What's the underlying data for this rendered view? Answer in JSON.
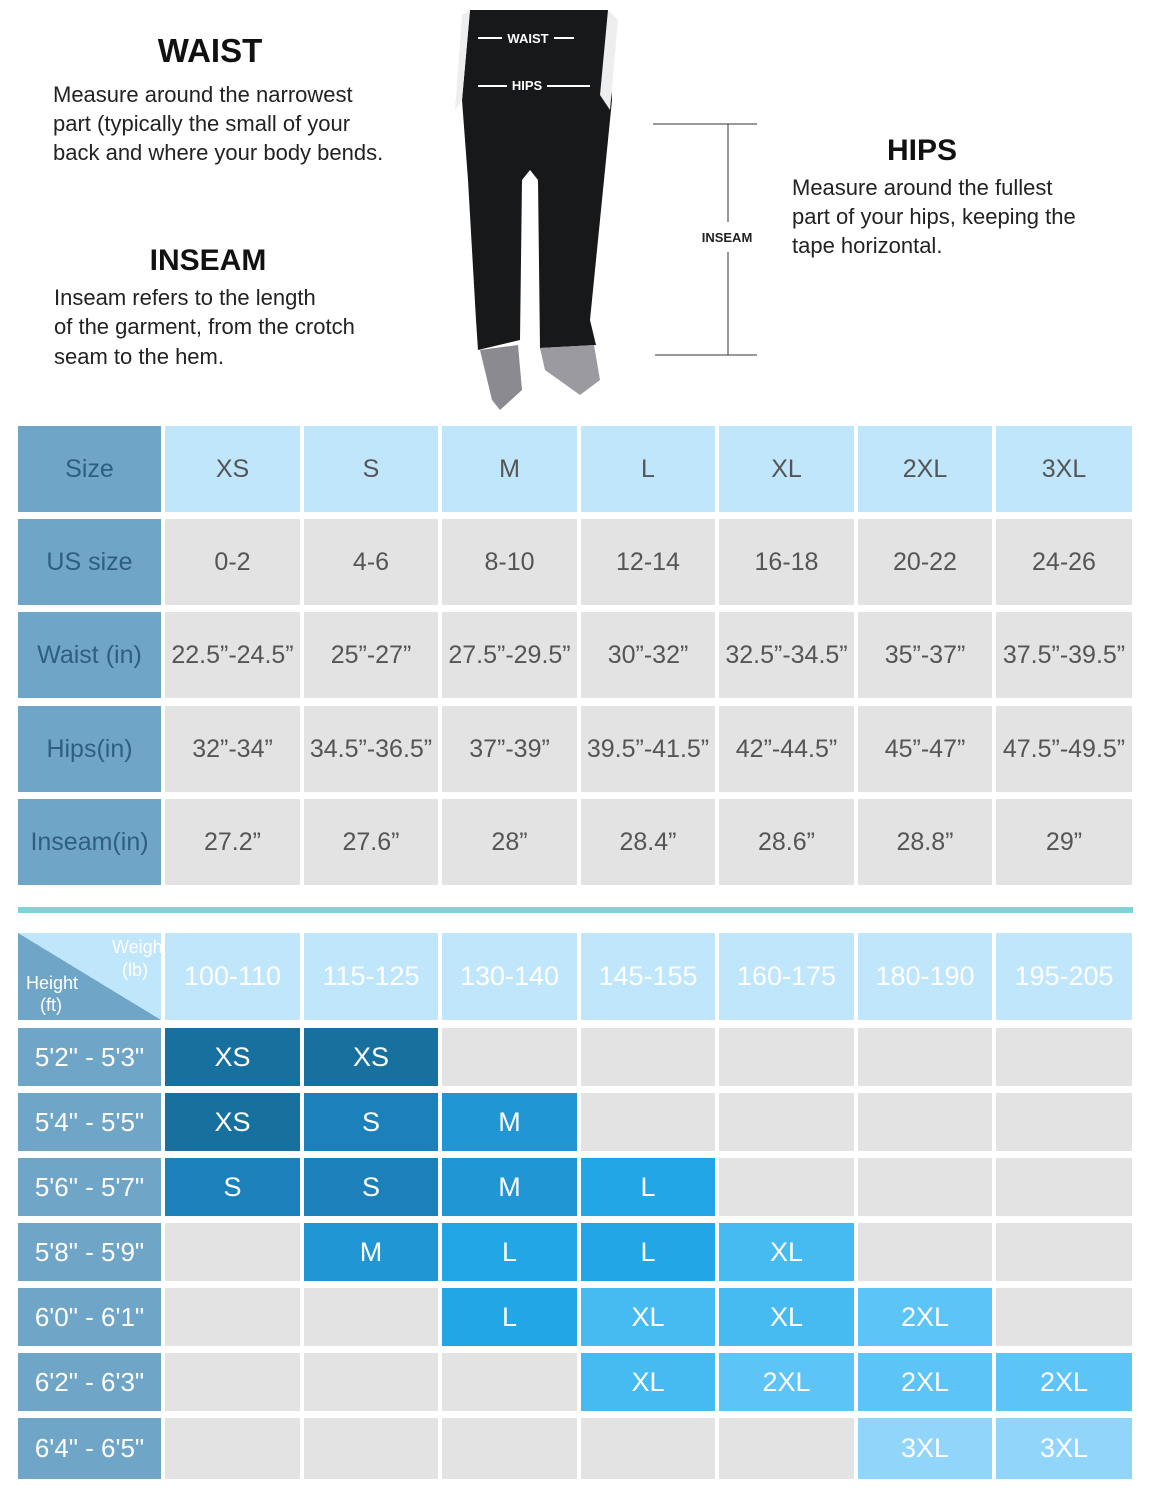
{
  "guide": {
    "waist": {
      "title": "WAIST",
      "lines": [
        "Measure around the narrowest",
        "part (typically the small of your",
        "back and where your body bends."
      ]
    },
    "inseam": {
      "title": "INSEAM",
      "lines": [
        "Inseam refers to the length",
        "of the garment, from the crotch",
        "seam to the hem."
      ]
    },
    "hips": {
      "title": "HIPS",
      "lines": [
        "Measure around the fullest",
        "part of your hips, keeping the",
        "tape horizontal."
      ]
    },
    "figure": {
      "waist_label": "WAIST",
      "hips_label": "HIPS",
      "inseam_label": "INSEAM"
    }
  },
  "size_table": {
    "rows": [
      [
        "Size",
        "XS",
        "S",
        "M",
        "L",
        "XL",
        "2XL",
        "3XL"
      ],
      [
        "US size",
        "0-2",
        "4-6",
        "8-10",
        "12-14",
        "16-18",
        "20-22",
        "24-26"
      ],
      [
        "Waist (in)",
        "22.5”-24.5”",
        "25”-27”",
        "27.5”-29.5”",
        "30”-32”",
        "32.5”-34.5”",
        "35”-37”",
        "37.5”-39.5”"
      ],
      [
        "Hips(in)",
        "32”-34”",
        "34.5”-36.5”",
        "37”-39”",
        "39.5”-41.5”",
        "42”-44.5”",
        "45”-47”",
        "47.5”-49.5”"
      ],
      [
        "Inseam(in)",
        "27.2”",
        "27.6”",
        "28”",
        "28.4”",
        "28.6”",
        "28.8”",
        "29”"
      ]
    ]
  },
  "fit_table": {
    "weight_label": "Weight",
    "weight_unit": "(lb)",
    "height_label": "Height",
    "height_unit": "(ft)",
    "weights": [
      "100-110",
      "115-125",
      "130-140",
      "145-155",
      "160-175",
      "180-190",
      "195-205"
    ],
    "rows": [
      {
        "height": "5'2\" - 5'3\"",
        "sizes": [
          "XS",
          "XS",
          null,
          null,
          null,
          null,
          null
        ]
      },
      {
        "height": "5'4\" - 5'5\"",
        "sizes": [
          "XS",
          "S",
          "M",
          null,
          null,
          null,
          null
        ]
      },
      {
        "height": "5'6\" - 5'7\"",
        "sizes": [
          "S",
          "S",
          "M",
          "L",
          null,
          null,
          null
        ]
      },
      {
        "height": "5'8\" - 5'9\"",
        "sizes": [
          null,
          "M",
          "L",
          "L",
          "XL",
          null,
          null
        ]
      },
      {
        "height": "6'0\" - 6'1\"",
        "sizes": [
          null,
          null,
          "L",
          "XL",
          "XL",
          "2XL",
          null
        ]
      },
      {
        "height": "6'2\" - 6'3\"",
        "sizes": [
          null,
          null,
          null,
          "XL",
          "2XL",
          "2XL",
          "2XL"
        ]
      },
      {
        "height": "6'4\" - 6'5\"",
        "sizes": [
          null,
          null,
          null,
          null,
          null,
          "3XL",
          "3XL"
        ]
      }
    ]
  }
}
